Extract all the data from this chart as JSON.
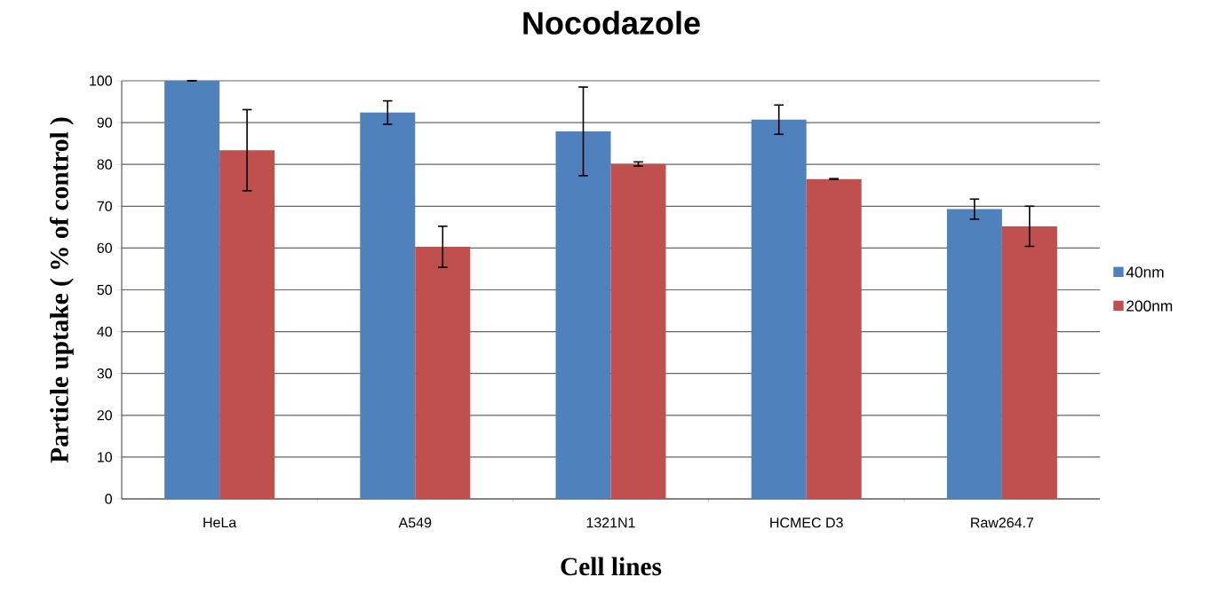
{
  "chart_data": {
    "type": "bar",
    "title": "Nocodazole",
    "xlabel": "Cell lines",
    "ylabel": "Particle uptake ( % of control )",
    "categories": [
      "HeLa",
      "A549",
      "1321N1",
      "HCMEC D3",
      "Raw264.7"
    ],
    "series": [
      {
        "name": "40nm",
        "color": "#4f81bd",
        "values": [
          100,
          92.4,
          87.9,
          90.7,
          69.3
        ],
        "errors": [
          0,
          2.8,
          10.6,
          3.5,
          2.4
        ]
      },
      {
        "name": "200nm",
        "color": "#c0504d",
        "values": [
          83.4,
          60.3,
          80.1,
          76.5,
          65.2
        ],
        "errors": [
          9.7,
          4.9,
          0.5,
          0.1,
          4.8
        ]
      }
    ],
    "ylim": [
      0,
      100
    ],
    "yticks": [
      0,
      10,
      20,
      30,
      40,
      50,
      60,
      70,
      80,
      90,
      100
    ],
    "grid": "y",
    "legend": "right"
  }
}
